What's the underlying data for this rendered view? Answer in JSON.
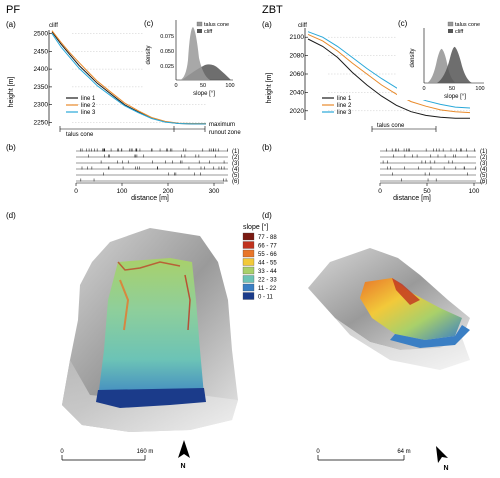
{
  "site_pf": {
    "name": "PF",
    "panel_a": "(a)",
    "panel_b": "(b)",
    "panel_c": "(c)",
    "panel_d": "(d)",
    "cliff_label": "cliff",
    "talus_label": "talus cone",
    "max_runout_1": "maximum",
    "max_runout_2": "runout zone",
    "height_axis_label": "height [m]",
    "distance_axis_label": "distance [m]",
    "slope_axis_label": "slope [°]",
    "density_axis_label": "density",
    "height_ticks": [
      "2500",
      "2450",
      "2400",
      "2350",
      "2300",
      "2250"
    ],
    "distance_ticks": [
      "0",
      "100",
      "200",
      "300"
    ],
    "density_ticks": [
      "0.075",
      "0.050",
      "0.025"
    ],
    "slope_ticks": [
      "0",
      "50",
      "100"
    ],
    "rows": [
      "(1)",
      "(2)",
      "(3)",
      "(4)",
      "(5)",
      "(6)"
    ],
    "scale_0": "0",
    "scale_end": "160 m",
    "north": "N"
  },
  "site_zbt": {
    "name": "ZBT",
    "panel_a": "(a)",
    "panel_b": "(b)",
    "panel_c": "(c)",
    "panel_d": "(d)",
    "cliff_label": "cliff",
    "talus_label": "talus cone",
    "height_axis_label": "height [m]",
    "distance_axis_label": "distance [m]",
    "slope_axis_label": "slope [°]",
    "density_axis_label": "density",
    "height_ticks": [
      "2100",
      "2080",
      "2060",
      "2040",
      "2020"
    ],
    "distance_ticks": [
      "0",
      "50",
      "100"
    ],
    "slope_ticks": [
      "0",
      "50",
      "100"
    ],
    "rows": [
      "(1)",
      "(2)",
      "(3)",
      "(4)",
      "(5)",
      "(6)"
    ],
    "scale_0": "0",
    "scale_end": "64 m",
    "north": "N"
  },
  "legend_lines": [
    "line 1",
    "line 2",
    "line 3"
  ],
  "legend_density": [
    "talus cone",
    "cliff"
  ],
  "slope_legend": {
    "title": "slope [°]",
    "classes": [
      {
        "label": "77 - 88",
        "color": "#7a1a12"
      },
      {
        "label": "66 - 77",
        "color": "#c0321e"
      },
      {
        "label": "55 - 66",
        "color": "#e8762a"
      },
      {
        "label": "44 - 55",
        "color": "#f2c93a"
      },
      {
        "label": "33 - 44",
        "color": "#a9d06a"
      },
      {
        "label": "22 - 33",
        "color": "#6cc3b6"
      },
      {
        "label": "11 - 22",
        "color": "#3a7fc4"
      },
      {
        "label": "0 - 11",
        "color": "#1b3b8a"
      }
    ]
  },
  "line_colors": {
    "line 1": "#1a1a1a",
    "line 2": "#e98a2a",
    "line 3": "#29a8d9"
  },
  "chart_data": [
    {
      "type": "line",
      "title": "",
      "xlabel": "",
      "ylabel": "height [m]",
      "ylim": [
        2240,
        2510
      ],
      "x": [
        0,
        20,
        40,
        60,
        80,
        100,
        130,
        160,
        190,
        220,
        250,
        280,
        310,
        340
      ],
      "series": [
        {
          "name": "line 1",
          "values": [
            2505,
            2470,
            2440,
            2410,
            2385,
            2360,
            2330,
            2300,
            2280,
            2262,
            2252,
            2247,
            2246,
            2246
          ]
        },
        {
          "name": "line 2",
          "values": [
            2508,
            2475,
            2445,
            2418,
            2392,
            2366,
            2335,
            2305,
            2283,
            2264,
            2253,
            2248,
            2247,
            2247
          ]
        },
        {
          "name": "line 3",
          "values": [
            2500,
            2462,
            2432,
            2402,
            2378,
            2353,
            2325,
            2297,
            2278,
            2261,
            2251,
            2247,
            2246,
            2246
          ]
        }
      ]
    },
    {
      "type": "area",
      "title": "",
      "xlabel": "slope [°]",
      "ylabel": "density",
      "xlim": [
        0,
        100
      ],
      "ylim": [
        0,
        0.09
      ],
      "series": [
        {
          "name": "talus cone",
          "x": [
            0,
            20,
            30,
            35,
            40,
            45,
            50,
            60,
            70
          ],
          "values": [
            0,
            0.005,
            0.04,
            0.075,
            0.082,
            0.06,
            0.03,
            0.008,
            0
          ]
        },
        {
          "name": "cliff",
          "x": [
            10,
            30,
            40,
            50,
            55,
            60,
            70,
            80,
            95
          ],
          "values": [
            0,
            0.008,
            0.02,
            0.028,
            0.03,
            0.028,
            0.02,
            0.008,
            0
          ]
        }
      ]
    },
    {
      "type": "line",
      "title": "",
      "xlabel": "distance [m]",
      "ylabel": "height [m]",
      "ylim": [
        2010,
        2110
      ],
      "x": [
        0,
        10,
        20,
        30,
        40,
        50,
        60,
        70,
        80,
        90,
        100,
        110
      ],
      "series": [
        {
          "name": "line 1",
          "values": [
            2098,
            2090,
            2078,
            2062,
            2048,
            2036,
            2026,
            2019,
            2015,
            2013,
            2012,
            2012
          ]
        },
        {
          "name": "line 2",
          "values": [
            2103,
            2096,
            2085,
            2072,
            2060,
            2048,
            2038,
            2030,
            2025,
            2021,
            2019,
            2018
          ]
        },
        {
          "name": "line 3",
          "values": [
            2106,
            2100,
            2090,
            2078,
            2066,
            2055,
            2045,
            2037,
            2031,
            2027,
            2024,
            2023
          ]
        }
      ]
    },
    {
      "type": "area",
      "title": "",
      "xlabel": "slope [°]",
      "ylabel": "density",
      "xlim": [
        0,
        100
      ],
      "series": [
        {
          "name": "talus cone",
          "x": [
            0,
            15,
            25,
            30,
            35,
            42,
            55
          ],
          "values": [
            0,
            0.01,
            0.04,
            0.05,
            0.04,
            0.015,
            0
          ]
        },
        {
          "name": "cliff",
          "x": [
            20,
            35,
            45,
            50,
            55,
            65,
            80
          ],
          "values": [
            0,
            0.015,
            0.04,
            0.048,
            0.04,
            0.015,
            0
          ]
        }
      ]
    }
  ]
}
